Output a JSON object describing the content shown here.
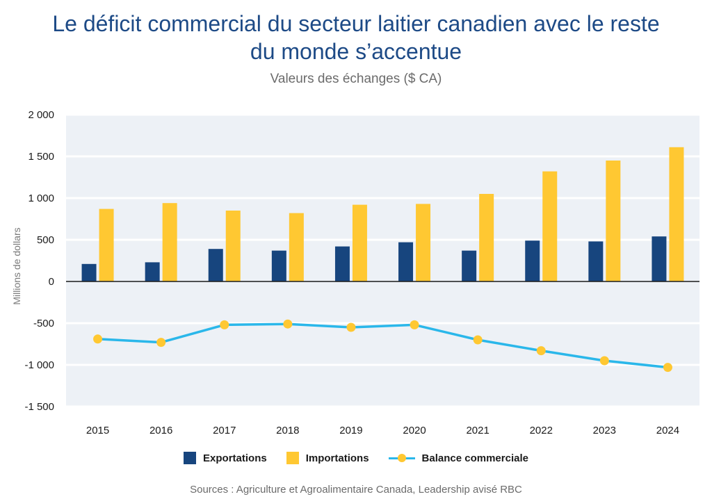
{
  "title_line1": "Le déficit commercial du secteur laitier canadien avec le reste",
  "title_line2": "du monde s’accentue",
  "subtitle": "Valeurs des échanges ($ CA)",
  "source": "Sources : Agriculture et Agroalimentaire Canada, Leadership avisé RBC",
  "colors": {
    "exports": "#17457e",
    "imports": "#ffc832",
    "balance_line": "#2ab7ea",
    "balance_marker": "#ffc832",
    "plot_bg": "#edf1f6",
    "title": "#1d4a86"
  },
  "legend": {
    "exports": "Exportations",
    "imports": "Importations",
    "balance": "Balance commerciale"
  },
  "chart_data": {
    "type": "bar",
    "title": "Le déficit commercial du secteur laitier canadien avec le reste du monde s’accentue",
    "subtitle": "Valeurs des échanges ($ CA)",
    "ylabel": "Millions de dollars",
    "xlabel": "",
    "categories": [
      "2015",
      "2016",
      "2017",
      "2018",
      "2019",
      "2020",
      "2021",
      "2022",
      "2023",
      "2024"
    ],
    "ylim": [
      -1500,
      2000
    ],
    "yticks": [
      2000,
      1500,
      1000,
      500,
      0,
      -500,
      -1000,
      -1500
    ],
    "ytick_labels": [
      "2 000",
      "1 500",
      "1 000",
      "500",
      "0",
      "-500",
      "-1 000",
      "-1 500"
    ],
    "grid": true,
    "legend_position": "bottom",
    "series": [
      {
        "name": "Exportations",
        "type": "bar",
        "values": [
          210,
          230,
          390,
          370,
          420,
          470,
          370,
          490,
          480,
          540
        ]
      },
      {
        "name": "Importations",
        "type": "bar",
        "values": [
          870,
          940,
          850,
          820,
          920,
          930,
          1050,
          1320,
          1450,
          1610
        ]
      },
      {
        "name": "Balance commerciale",
        "type": "line",
        "values": [
          -690,
          -730,
          -520,
          -510,
          -550,
          -520,
          -700,
          -830,
          -950,
          -1030
        ]
      }
    ]
  }
}
